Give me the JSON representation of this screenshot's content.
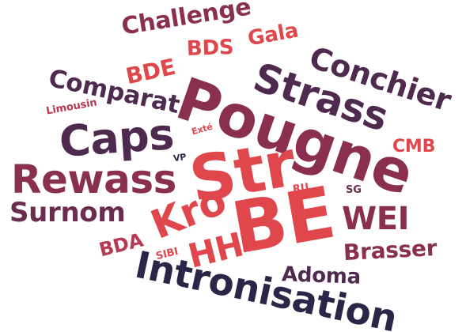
{
  "colors": {
    "red": "#e0474c",
    "crimson": "#b53a52",
    "wine": "#8a2f4f",
    "plum": "#6b2c4f",
    "purple": "#4f2a4f",
    "navy": "#2b2648"
  },
  "words": {
    "challenge": "Challenge",
    "gala": "Gala",
    "bds": "BDS",
    "bde": "BDE",
    "conchier": "Conchier",
    "strass": "Strass",
    "comparat": "Comparat",
    "pougne": "Pougne",
    "limousin": "Limousin",
    "caps": "Caps",
    "exte": "Exté",
    "cmb": "CMB",
    "vp": "VP",
    "str": "Str",
    "rewass": "Rewass",
    "ru": "RU",
    "sg": "SG",
    "surnom": "Surnom",
    "kro": "Kro",
    "be": "BE",
    "wei": "WEI",
    "bda": "BDA",
    "sibi": "SIBI",
    "hh": "HH",
    "brasser": "Brasser",
    "adoma": "Adoma",
    "intronisation": "Intronisation"
  }
}
